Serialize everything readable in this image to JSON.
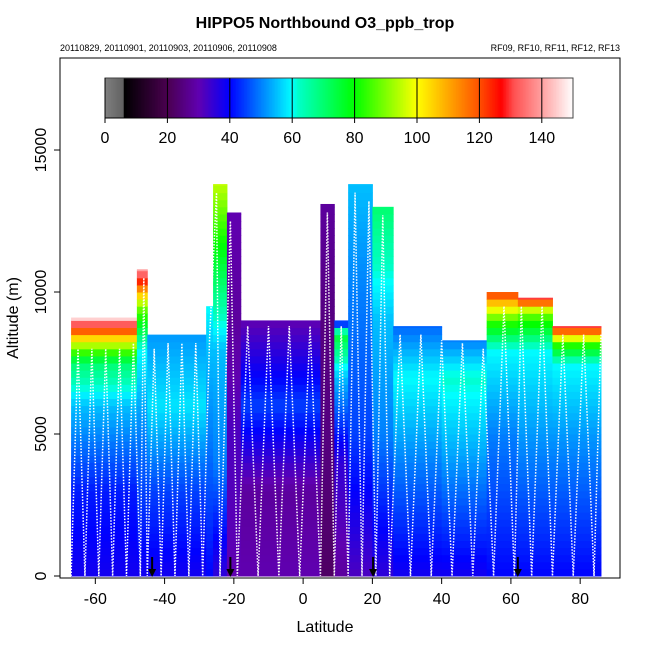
{
  "chart_data": {
    "type": "heatmap",
    "title": "HIPPO5 Northbound O3_ppb_trop",
    "subtitle_left": "20110829, 20110901, 20110903, 20110906, 20110908",
    "subtitle_right": "RF09, RF10, RF11, RF12, RF13",
    "xlabel": "Latitude",
    "ylabel": "Altitude (m)",
    "xlim": [
      -70.2,
      91.5
    ],
    "ylim": [
      -70,
      18240
    ],
    "xticks": [
      -60,
      -40,
      -20,
      0,
      20,
      40,
      60,
      80
    ],
    "yticks": [
      0,
      5000,
      10000,
      15000
    ],
    "colorbar": {
      "range": [
        0,
        150
      ],
      "ticks": [
        0,
        20,
        40,
        60,
        80,
        100,
        120,
        140
      ],
      "stops": [
        [
          0,
          "#808080"
        ],
        [
          6,
          "#606060"
        ],
        [
          6.1,
          "#000000"
        ],
        [
          20,
          "#4a0050"
        ],
        [
          30,
          "#6000b0"
        ],
        [
          40,
          "#0000ff"
        ],
        [
          60,
          "#00ffff"
        ],
        [
          62,
          "#00ffc8"
        ],
        [
          80,
          "#00ff00"
        ],
        [
          100,
          "#ffff00"
        ],
        [
          120,
          "#ff5000"
        ],
        [
          127,
          "#ff0000"
        ],
        [
          131,
          "#ff5050"
        ],
        [
          140,
          "#ffa0a0"
        ],
        [
          150,
          "#ffffff"
        ]
      ]
    },
    "columns": [
      {
        "lat": [
          -67,
          -48
        ],
        "top": 9100,
        "profile": [
          [
            0,
            38
          ],
          [
            3000,
            42
          ],
          [
            6000,
            55
          ],
          [
            7500,
            70
          ],
          [
            8300,
            100
          ],
          [
            8800,
            128
          ],
          [
            9100,
            145
          ]
        ]
      },
      {
        "lat": [
          -48,
          -45
        ],
        "top": 10800,
        "profile": [
          [
            0,
            38
          ],
          [
            5000,
            50
          ],
          [
            8000,
            60
          ],
          [
            9500,
            90
          ],
          [
            10800,
            140
          ]
        ]
      },
      {
        "lat": [
          -45,
          -28
        ],
        "top": 8500,
        "profile": [
          [
            0,
            38
          ],
          [
            3000,
            45
          ],
          [
            6000,
            58
          ],
          [
            8500,
            52
          ]
        ]
      },
      {
        "lat": [
          -28,
          -26
        ],
        "top": 9500,
        "profile": [
          [
            0,
            40
          ],
          [
            5000,
            50
          ],
          [
            8000,
            55
          ],
          [
            9500,
            60
          ]
        ]
      },
      {
        "lat": [
          -26,
          -22
        ],
        "top": 13800,
        "profile": [
          [
            0,
            35
          ],
          [
            4000,
            50
          ],
          [
            8000,
            55
          ],
          [
            11000,
            75
          ],
          [
            13800,
            95
          ]
        ]
      },
      {
        "lat": [
          -22,
          -18
        ],
        "top": 12800,
        "profile": [
          [
            0,
            30
          ],
          [
            5000,
            32
          ],
          [
            9000,
            28
          ],
          [
            12800,
            30
          ]
        ]
      },
      {
        "lat": [
          -18,
          5
        ],
        "top": 9000,
        "profile": [
          [
            0,
            30
          ],
          [
            3000,
            28
          ],
          [
            6000,
            45
          ],
          [
            8000,
            35
          ],
          [
            9000,
            30
          ]
        ]
      },
      {
        "lat": [
          5,
          9
        ],
        "top": 13100,
        "profile": [
          [
            0,
            22
          ],
          [
            5000,
            25
          ],
          [
            9000,
            25
          ],
          [
            13100,
            28
          ]
        ]
      },
      {
        "lat": [
          9,
          13
        ],
        "top": 9000,
        "profile": [
          [
            0,
            28
          ],
          [
            4000,
            35
          ],
          [
            7000,
            55
          ],
          [
            8500,
            75
          ],
          [
            9000,
            35
          ]
        ]
      },
      {
        "lat": [
          13,
          20
        ],
        "top": 13800,
        "profile": [
          [
            0,
            32
          ],
          [
            5000,
            45
          ],
          [
            10000,
            50
          ],
          [
            13800,
            55
          ]
        ]
      },
      {
        "lat": [
          20,
          26
        ],
        "top": 13000,
        "profile": [
          [
            0,
            35
          ],
          [
            5000,
            50
          ],
          [
            9000,
            55
          ],
          [
            13000,
            70
          ]
        ]
      },
      {
        "lat": [
          26,
          40
        ],
        "top": 8800,
        "profile": [
          [
            0,
            38
          ],
          [
            4000,
            50
          ],
          [
            7000,
            60
          ],
          [
            8800,
            48
          ]
        ]
      },
      {
        "lat": [
          40,
          53
        ],
        "top": 8300,
        "profile": [
          [
            0,
            38
          ],
          [
            4000,
            52
          ],
          [
            7000,
            62
          ],
          [
            8300,
            50
          ]
        ]
      },
      {
        "lat": [
          53,
          62
        ],
        "top": 10000,
        "profile": [
          [
            0,
            40
          ],
          [
            5000,
            50
          ],
          [
            8000,
            60
          ],
          [
            9000,
            85
          ],
          [
            9700,
            110
          ],
          [
            10000,
            125
          ]
        ]
      },
      {
        "lat": [
          62,
          72
        ],
        "top": 9800,
        "profile": [
          [
            0,
            40
          ],
          [
            5000,
            52
          ],
          [
            8000,
            60
          ],
          [
            9300,
            90
          ],
          [
            9800,
            130
          ]
        ]
      },
      {
        "lat": [
          72,
          86
        ],
        "top": 8800,
        "profile": [
          [
            0,
            40
          ],
          [
            5000,
            52
          ],
          [
            7500,
            60
          ],
          [
            8200,
            85
          ],
          [
            8800,
            130
          ]
        ]
      }
    ],
    "flight_track_turns": [
      [
        -67,
        0
      ],
      [
        -65,
        8000
      ],
      [
        -63,
        0
      ],
      [
        -61,
        8000
      ],
      [
        -59,
        0
      ],
      [
        -57,
        8000
      ],
      [
        -55,
        0
      ],
      [
        -53,
        8000
      ],
      [
        -51,
        0
      ],
      [
        -49,
        8200
      ],
      [
        -47,
        0
      ],
      [
        -46,
        10500
      ],
      [
        -45,
        0
      ],
      [
        -43,
        8000
      ],
      [
        -41,
        0
      ],
      [
        -39,
        8200
      ],
      [
        -37,
        0
      ],
      [
        -35,
        8200
      ],
      [
        -33,
        0
      ],
      [
        -31,
        8200
      ],
      [
        -29,
        0
      ],
      [
        -27,
        8400
      ],
      [
        -25,
        13500
      ],
      [
        -24,
        0
      ],
      [
        -21,
        12500
      ],
      [
        -19,
        0
      ],
      [
        -16,
        8800
      ],
      [
        -13,
        0
      ],
      [
        -10,
        8800
      ],
      [
        -7,
        0
      ],
      [
        -4,
        8800
      ],
      [
        -1,
        0
      ],
      [
        2,
        8800
      ],
      [
        5,
        0
      ],
      [
        7,
        12800
      ],
      [
        9,
        0
      ],
      [
        11,
        8800
      ],
      [
        13,
        0
      ],
      [
        15,
        13500
      ],
      [
        17,
        0
      ],
      [
        19,
        13200
      ],
      [
        21,
        0
      ],
      [
        23,
        12700
      ],
      [
        25,
        0
      ],
      [
        28,
        8500
      ],
      [
        31,
        0
      ],
      [
        34,
        8500
      ],
      [
        37,
        0
      ],
      [
        40,
        8300
      ],
      [
        43,
        0
      ],
      [
        46,
        8200
      ],
      [
        49,
        0
      ],
      [
        52,
        8000
      ],
      [
        55,
        0
      ],
      [
        58,
        9500
      ],
      [
        61,
        0
      ],
      [
        63,
        9500
      ],
      [
        66,
        0
      ],
      [
        69,
        9500
      ],
      [
        72,
        0
      ],
      [
        75,
        8500
      ],
      [
        78,
        0
      ],
      [
        81,
        8500
      ],
      [
        84,
        0
      ],
      [
        86,
        8500
      ]
    ],
    "arrow_markers_lat": [
      -43.6,
      -21,
      20.2,
      62
    ]
  }
}
